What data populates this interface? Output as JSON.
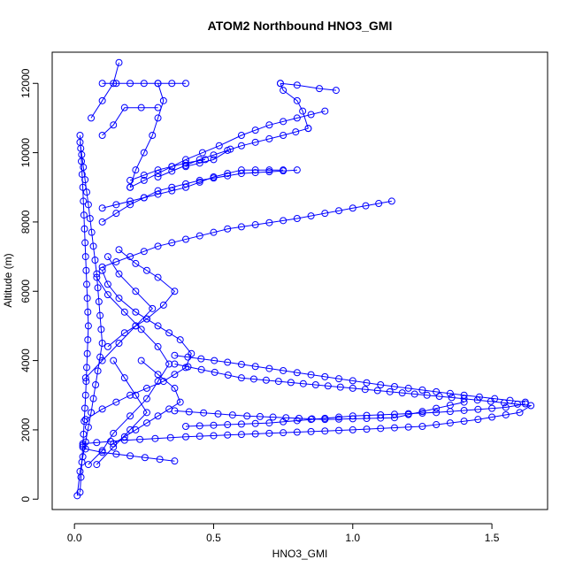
{
  "chart_data": {
    "type": "scatter",
    "title": "ATOM2 Northbound HNO3_GMI",
    "xlabel": "HNO3_GMI",
    "ylabel": "Altitude (m)",
    "xlim": [
      -0.08,
      1.7
    ],
    "ylim": [
      -300,
      12900
    ],
    "xticks": [
      0.0,
      0.5,
      1.0,
      1.5
    ],
    "xtick_labels": [
      "0.0",
      "0.5",
      "1.0",
      "1.5"
    ],
    "yticks": [
      0,
      2000,
      4000,
      6000,
      8000,
      10000,
      12000
    ],
    "ytick_labels": [
      "0",
      "2000",
      "4000",
      "6000",
      "8000",
      "10000",
      "12000"
    ],
    "grid": false,
    "legend": "none",
    "marker": "open-circle",
    "color": "#0000ff",
    "series": [
      {
        "x": [
          0.36,
          0.2,
          0.1,
          0.04,
          0.03
        ],
        "y": [
          1100,
          1250,
          1350,
          1450,
          1550
        ]
      },
      {
        "x": [
          0.03,
          0.18,
          0.4,
          0.7,
          1.0,
          1.25,
          1.45,
          1.6,
          1.64,
          1.4,
          1.0,
          0.6,
          0.36
        ],
        "y": [
          1600,
          1700,
          1800,
          1900,
          2000,
          2100,
          2300,
          2500,
          2700,
          2900,
          3200,
          3500,
          3900
        ]
      },
      {
        "x": [
          0.4,
          0.7,
          1.0,
          1.3,
          1.55,
          1.62
        ],
        "y": [
          2100,
          2200,
          2400,
          2500,
          2650,
          2750
        ]
      },
      {
        "x": [
          1.62,
          1.4,
          1.1,
          0.8,
          0.55,
          0.36
        ],
        "y": [
          2800,
          3000,
          3300,
          3650,
          3950,
          4150
        ]
      },
      {
        "x": [
          0.36,
          0.62,
          0.9,
          1.15,
          1.4
        ],
        "y": [
          2550,
          2400,
          2300,
          2350,
          2800
        ]
      },
      {
        "x": [
          0.04,
          0.1,
          0.2,
          0.32,
          0.4,
          0.42,
          0.38,
          0.3,
          0.22,
          0.16,
          0.12,
          0.1
        ],
        "y": [
          2300,
          2600,
          3000,
          3400,
          3800,
          4200,
          4600,
          5000,
          5400,
          5800,
          6200,
          6600
        ]
      },
      {
        "x": [
          0.05,
          0.1,
          0.14,
          0.2,
          0.26,
          0.3,
          0.34,
          0.3,
          0.24,
          0.18,
          0.12,
          0.08
        ],
        "y": [
          1000,
          1400,
          1900,
          2400,
          2900,
          3400,
          3900,
          4400,
          4900,
          5400,
          5900,
          6400
        ]
      },
      {
        "x": [
          0.1,
          0.3,
          0.55,
          0.8,
          1.0,
          1.14
        ],
        "y": [
          6700,
          7300,
          7800,
          8100,
          8400,
          8600
        ]
      },
      {
        "x": [
          0.1,
          0.2,
          0.3,
          0.45,
          0.6,
          0.8
        ],
        "y": [
          8000,
          8500,
          8900,
          9200,
          9400,
          9500
        ]
      },
      {
        "x": [
          0.1,
          0.25,
          0.4,
          0.5,
          0.6,
          0.75
        ],
        "y": [
          8400,
          8700,
          9000,
          9300,
          9500,
          9500
        ]
      },
      {
        "x": [
          0.4,
          0.5,
          0.56
        ],
        "y": [
          9600,
          9800,
          10100
        ]
      },
      {
        "x": [
          0.2,
          0.3,
          0.4,
          0.52,
          0.6,
          0.7,
          0.8,
          0.9
        ],
        "y": [
          9000,
          9400,
          9800,
          10200,
          10500,
          10800,
          11000,
          11200
        ]
      },
      {
        "x": [
          0.3,
          0.45,
          0.6,
          0.75,
          0.84
        ],
        "y": [
          9300,
          9800,
          10200,
          10500,
          10700
        ]
      },
      {
        "x": [
          0.84,
          0.82,
          0.8,
          0.75,
          0.74
        ],
        "y": [
          10700,
          11200,
          11500,
          11800,
          12000
        ]
      },
      {
        "x": [
          0.74,
          0.8,
          0.88,
          0.94
        ],
        "y": [
          12000,
          11950,
          11850,
          11800
        ]
      },
      {
        "x": [
          0.2,
          0.3,
          0.4,
          0.47
        ],
        "y": [
          9200,
          9500,
          9700,
          9800
        ]
      },
      {
        "x": [
          0.1,
          0.14,
          0.18,
          0.24,
          0.3
        ],
        "y": [
          10500,
          10800,
          11300,
          11300,
          11300
        ]
      },
      {
        "x": [
          0.06,
          0.1,
          0.14,
          0.16
        ],
        "y": [
          11000,
          11500,
          12000,
          12600
        ]
      },
      {
        "x": [
          0.3,
          0.32,
          0.3,
          0.28,
          0.25,
          0.22,
          0.2
        ],
        "y": [
          12000,
          11500,
          11000,
          10500,
          10000,
          9500,
          9000
        ]
      },
      {
        "x": [
          0.1,
          0.2,
          0.3,
          0.4
        ],
        "y": [
          12000,
          12000,
          12000,
          12000
        ]
      },
      {
        "x": [
          0.02,
          0.03,
          0.04,
          0.05,
          0.04,
          0.03,
          0.02
        ],
        "y": [
          200,
          1500,
          3000,
          5000,
          7000,
          9000,
          10500
        ]
      },
      {
        "x": [
          0.01,
          0.02,
          0.06,
          0.1,
          0.08,
          0.05,
          0.02
        ],
        "y": [
          100,
          800,
          2500,
          4500,
          6500,
          8500,
          10300
        ]
      },
      {
        "x": [
          0.04,
          0.1,
          0.16,
          0.22,
          0.28,
          0.22,
          0.16,
          0.12
        ],
        "y": [
          3500,
          4000,
          4500,
          5000,
          5500,
          6000,
          6500,
          7000
        ]
      },
      {
        "x": [
          0.08,
          0.14,
          0.2,
          0.26,
          0.22,
          0.18,
          0.14
        ],
        "y": [
          1000,
          1500,
          2000,
          2500,
          3000,
          3500,
          4000
        ]
      },
      {
        "x": [
          0.14,
          0.22,
          0.3,
          0.38,
          0.36,
          0.3,
          0.24
        ],
        "y": [
          1600,
          2000,
          2400,
          2800,
          3200,
          3600,
          4000
        ]
      },
      {
        "x": [
          0.12,
          0.18,
          0.26,
          0.32,
          0.36,
          0.3,
          0.22,
          0.16
        ],
        "y": [
          4400,
          4800,
          5200,
          5600,
          6000,
          6400,
          6800,
          7200
        ]
      }
    ]
  }
}
